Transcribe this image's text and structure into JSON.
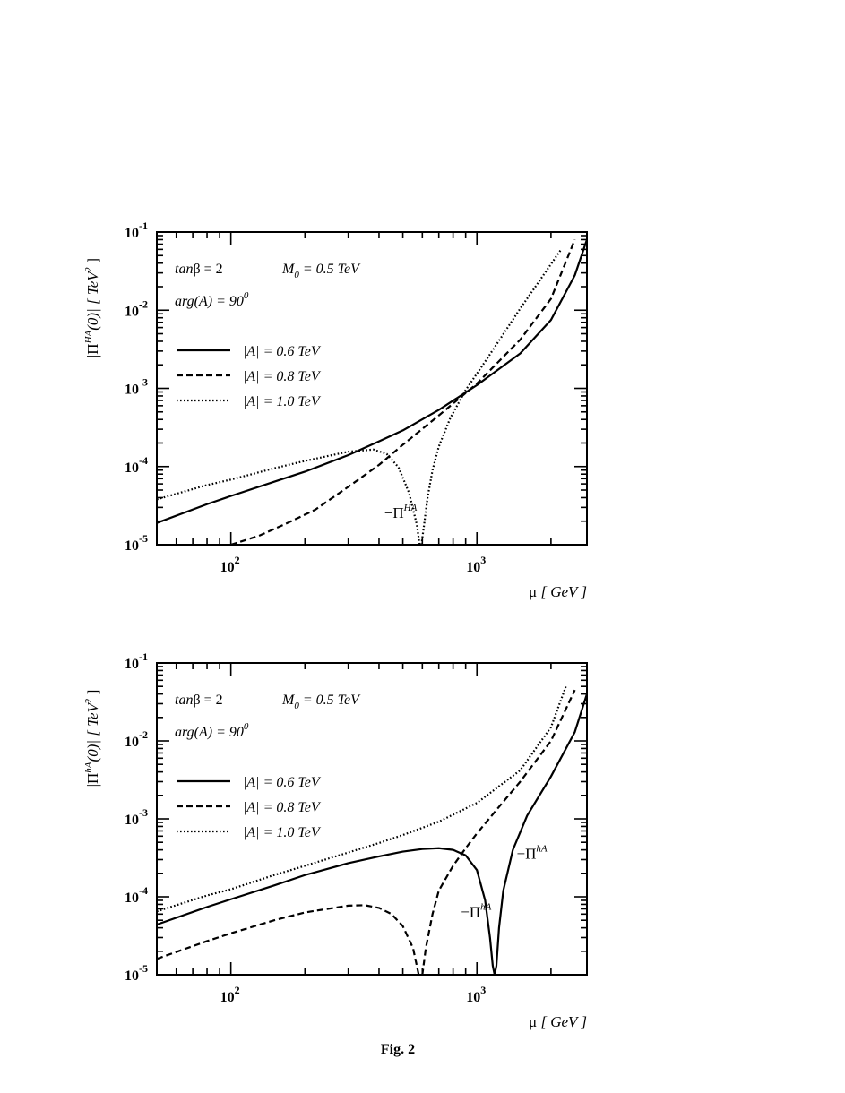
{
  "figure_caption": "Fig. 2",
  "chart_data": [
    {
      "type": "line",
      "panel": "top",
      "ylabel_pre": "|Π",
      "ylabel_sup": "HA",
      "ylabel_post": "(0)|  [ TeV",
      "ylabel_sup2": "2",
      "ylabel_end": " ]",
      "xlabel_sym": "μ",
      "xlabel_unit": "[ GeV ]",
      "x_scale": "log",
      "y_scale": "log",
      "xlim": [
        50,
        2800
      ],
      "ylim": [
        1e-05,
        0.1
      ],
      "x_ticks": [
        {
          "base": "10",
          "exp": "2",
          "value": 100
        },
        {
          "base": "10",
          "exp": "3",
          "value": 1000
        }
      ],
      "y_ticks": [
        {
          "base": "10",
          "exp": "-1",
          "value": 0.1
        },
        {
          "base": "10",
          "exp": "-2",
          "value": 0.01
        },
        {
          "base": "10",
          "exp": "-3",
          "value": 0.001
        },
        {
          "base": "10",
          "exp": "-4",
          "value": 0.0001
        },
        {
          "base": "10",
          "exp": "-5",
          "value": 1e-05
        }
      ],
      "params": {
        "tanb_pre": "tan",
        "tanb_post": "β = 2",
        "m0_pre": "M",
        "m0_sub": "0",
        "m0_post": " = 0.5 TeV",
        "arg_pre": "arg(A) = 90",
        "arg_sup": "0"
      },
      "legend": [
        {
          "label": "|A| = 0.6 TeV",
          "style": "solid"
        },
        {
          "label": "|A| = 0.8 TeV",
          "style": "dashed"
        },
        {
          "label": "|A| = 1.0 TeV",
          "style": "dotted"
        }
      ],
      "annotations": [
        {
          "pre": "−Π",
          "sup": "HA",
          "x": 420,
          "y": 2.2e-05
        }
      ],
      "series": [
        {
          "style": "solid",
          "x": [
            50,
            80,
            100,
            150,
            200,
            300,
            400,
            500,
            700,
            1000,
            1500,
            2000,
            2500,
            2800
          ],
          "y": [
            1.9e-05,
            3.3e-05,
            4.2e-05,
            6.4e-05,
            8.6e-05,
            0.00014,
            0.00021,
            0.00029,
            0.00053,
            0.0011,
            0.0028,
            0.0075,
            0.028,
            0.08
          ]
        },
        {
          "style": "dashed",
          "x": [
            100,
            130,
            170,
            220,
            300,
            400,
            500,
            700,
            1000,
            1500,
            2000,
            2500
          ],
          "y": [
            1e-05,
            1.3e-05,
            1.9e-05,
            2.8e-05,
            5.5e-05,
            0.000105,
            0.00019,
            0.00045,
            0.00115,
            0.0042,
            0.014,
            0.08
          ]
        },
        {
          "style": "dotted",
          "x": [
            50,
            80,
            100,
            150,
            200,
            300,
            380,
            430,
            480,
            530,
            570,
            585,
            595,
            610,
            630,
            660,
            700,
            780,
            900,
            1100,
            1500,
            1800,
            2200
          ],
          "y": [
            3.8e-05,
            5.8e-05,
            6.8e-05,
            9.5e-05,
            0.000118,
            0.000155,
            0.000165,
            0.000145,
            9.8e-05,
            4.6e-05,
            1.8e-05,
            1e-05,
            1e-05,
            1.8e-05,
            4e-05,
            9e-05,
            0.00018,
            0.00042,
            0.00095,
            0.0024,
            0.0105,
            0.024,
            0.06
          ]
        }
      ]
    },
    {
      "type": "line",
      "panel": "bottom",
      "ylabel_pre": "|Π",
      "ylabel_sup": "hA",
      "ylabel_post": "(0)|  [ TeV",
      "ylabel_sup2": "2",
      "ylabel_end": " ]",
      "xlabel_sym": "μ",
      "xlabel_unit": "[ GeV ]",
      "x_scale": "log",
      "y_scale": "log",
      "xlim": [
        50,
        2800
      ],
      "ylim": [
        1e-05,
        0.1
      ],
      "x_ticks": [
        {
          "base": "10",
          "exp": "2",
          "value": 100
        },
        {
          "base": "10",
          "exp": "3",
          "value": 1000
        }
      ],
      "y_ticks": [
        {
          "base": "10",
          "exp": "-1",
          "value": 0.1
        },
        {
          "base": "10",
          "exp": "-2",
          "value": 0.01
        },
        {
          "base": "10",
          "exp": "-3",
          "value": 0.001
        },
        {
          "base": "10",
          "exp": "-4",
          "value": 0.0001
        },
        {
          "base": "10",
          "exp": "-5",
          "value": 1e-05
        }
      ],
      "params": {
        "tanb_pre": "tan",
        "tanb_post": "β = 2",
        "m0_pre": "M",
        "m0_sub": "0",
        "m0_post": " = 0.5 TeV",
        "arg_pre": "arg(A) = 90",
        "arg_sup": "0"
      },
      "legend": [
        {
          "label": "|A| = 0.6 TeV",
          "style": "solid"
        },
        {
          "label": "|A| = 0.8 TeV",
          "style": "dashed"
        },
        {
          "label": "|A| = 1.0 TeV",
          "style": "dotted"
        }
      ],
      "annotations": [
        {
          "pre": "−Π",
          "sup": "hA",
          "x": 860,
          "y": 5.5e-05
        },
        {
          "pre": "−Π",
          "sup": "hA",
          "x": 1450,
          "y": 0.00031
        }
      ],
      "series": [
        {
          "style": "solid",
          "x": [
            50,
            80,
            100,
            150,
            200,
            300,
            400,
            500,
            600,
            700,
            800,
            900,
            1000,
            1080,
            1130,
            1160,
            1180,
            1200,
            1230,
            1280,
            1400,
            1600,
            2000,
            2500,
            2800
          ],
          "y": [
            4.4e-05,
            7.4e-05,
            9.3e-05,
            0.00014,
            0.00019,
            0.00027,
            0.00033,
            0.00038,
            0.00041,
            0.00042,
            0.0004,
            0.00034,
            0.00022,
            9e-05,
            3e-05,
            1.3e-05,
            1e-05,
            1.3e-05,
            4e-05,
            0.00012,
            0.0004,
            0.0011,
            0.0035,
            0.013,
            0.04
          ]
        },
        {
          "style": "dashed",
          "x": [
            50,
            80,
            100,
            150,
            200,
            300,
            350,
            400,
            450,
            500,
            550,
            580,
            600,
            620,
            660,
            700,
            800,
            900,
            1000,
            1200,
            1500,
            2000,
            2500
          ],
          "y": [
            1.6e-05,
            2.7e-05,
            3.4e-05,
            5e-05,
            6.3e-05,
            7.7e-05,
            7.8e-05,
            7.2e-05,
            6e-05,
            4.2e-05,
            2.2e-05,
            1e-05,
            1e-05,
            2.2e-05,
            6e-05,
            0.00012,
            0.00025,
            0.00042,
            0.00065,
            0.0013,
            0.003,
            0.01,
            0.045
          ]
        },
        {
          "style": "dotted",
          "x": [
            50,
            80,
            100,
            150,
            200,
            300,
            400,
            500,
            700,
            1000,
            1500,
            2000,
            2300
          ],
          "y": [
            6.5e-05,
            0.000104,
            0.000125,
            0.00019,
            0.00025,
            0.00037,
            0.00049,
            0.00062,
            0.00092,
            0.0016,
            0.0042,
            0.015,
            0.05
          ]
        }
      ]
    }
  ]
}
